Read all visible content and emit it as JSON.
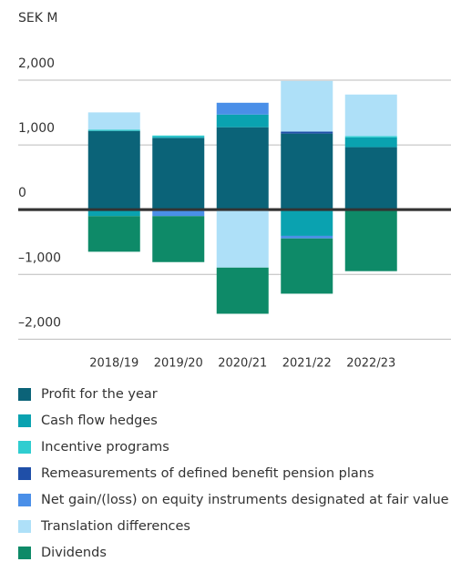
{
  "chart_data": {
    "type": "stacked_bar",
    "y_label": "SEK M",
    "categories": [
      "2018/19",
      "2019/20",
      "2020/21",
      "2021/22",
      "2022/23"
    ],
    "series": [
      {
        "name": "Profit for the year",
        "color": "#0b6378",
        "values": [
          1217,
          1105,
          1273,
          1175,
          965
        ]
      },
      {
        "name": "Cash flow hedges",
        "color": "#0aa2b0",
        "values": [
          -100,
          20,
          196,
          -405,
          150
        ]
      },
      {
        "name": "Incentive programs",
        "color": "#2fcdd0",
        "values": [
          20,
          20,
          null,
          null,
          20
        ]
      },
      {
        "name": "Remeasurements of defined benefit pension plans",
        "color": "#1f4fa8",
        "values": [
          null,
          null,
          null,
          30,
          null
        ]
      },
      {
        "name": "Net gain/(loss) on equity instruments designated at fair value",
        "color": "#4a8fe8",
        "values": [
          null,
          -100,
          182,
          -40,
          null
        ]
      },
      {
        "name": "Translation differences",
        "color": "#aee0f8",
        "values": [
          265,
          null,
          -895,
          783,
          643
        ]
      },
      {
        "name": "Dividends",
        "color": "#0e8a68",
        "values": [
          -550,
          -710,
          -713,
          -853,
          -950
        ]
      }
    ],
    "ylim": [
      -2150,
      2000
    ],
    "yticks": [
      {
        "value": 2000,
        "label": "2,000"
      },
      {
        "value": 1000,
        "label": "1,000"
      },
      0,
      {
        "value": -1000,
        "label": "–1,000"
      },
      {
        "value": -2000,
        "label": "–2,000"
      }
    ],
    "grid": true
  }
}
